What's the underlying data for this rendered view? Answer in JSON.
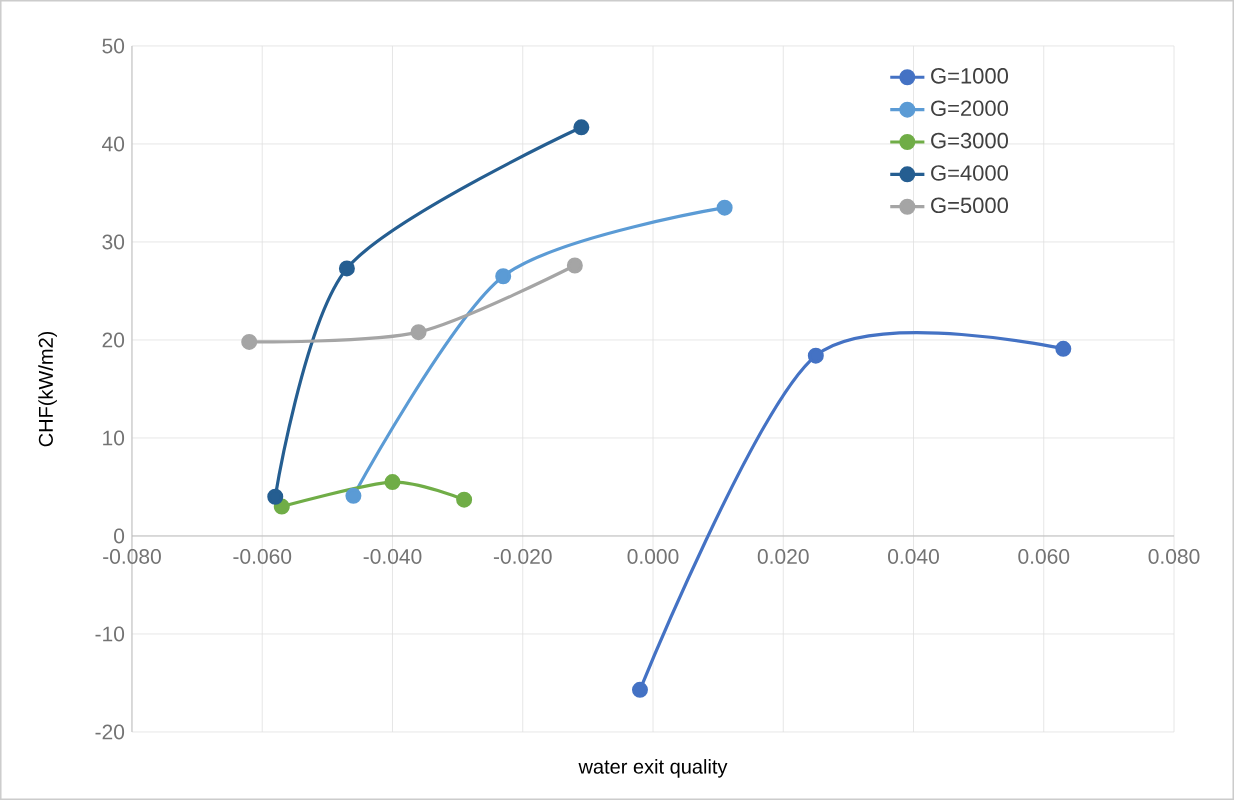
{
  "chart_data": {
    "type": "line",
    "xlabel": "water exit quality",
    "ylabel": "CHF(kW/m2)",
    "xlim": [
      -0.08,
      0.08
    ],
    "ylim": [
      -20,
      50
    ],
    "xticks": [
      {
        "value": -0.08,
        "label": "-0.080"
      },
      {
        "value": -0.06,
        "label": "-0.060"
      },
      {
        "value": -0.04,
        "label": "-0.040"
      },
      {
        "value": -0.02,
        "label": "-0.020"
      },
      {
        "value": 0,
        "label": "0.000"
      },
      {
        "value": 0.02,
        "label": "0.020"
      },
      {
        "value": 0.04,
        "label": "0.040"
      },
      {
        "value": 0.06,
        "label": "0.060"
      },
      {
        "value": 0.08,
        "label": "0.080"
      }
    ],
    "yticks": [
      -20,
      -10,
      0,
      10,
      20,
      30,
      40,
      50
    ],
    "grid": true,
    "legend": "top right",
    "marker": "circle",
    "series": [
      {
        "name": "G=1000",
        "color": "#4472c4",
        "x": [
          -0.002,
          0.025,
          0.063
        ],
        "values": [
          -15.7,
          18.4,
          19.1
        ]
      },
      {
        "name": "G=2000",
        "color": "#5b9bd5",
        "x": [
          -0.046,
          -0.023,
          0.011
        ],
        "values": [
          4.1,
          26.5,
          33.5
        ]
      },
      {
        "name": "G=3000",
        "color": "#70ad47",
        "x": [
          -0.057,
          -0.04,
          -0.029
        ],
        "values": [
          3.0,
          5.5,
          3.7
        ]
      },
      {
        "name": "G=4000",
        "color": "#255e91",
        "x": [
          -0.058,
          -0.047,
          -0.011
        ],
        "values": [
          4.0,
          27.3,
          41.7
        ]
      },
      {
        "name": "G=5000",
        "color": "#a5a5a5",
        "x": [
          -0.062,
          -0.036,
          -0.012
        ],
        "values": [
          19.8,
          20.8,
          27.6
        ]
      }
    ]
  }
}
